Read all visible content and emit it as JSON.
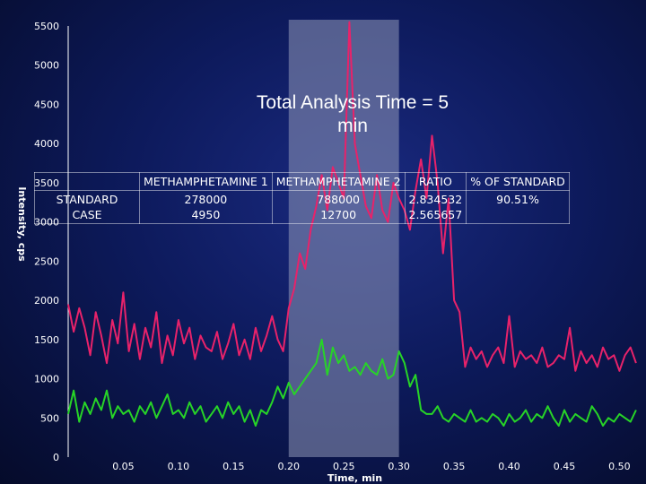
{
  "chart_data": {
    "type": "line",
    "title": "",
    "xlabel": "Time, min",
    "ylabel": "Intensity, cps",
    "xlim": [
      0,
      0.52
    ],
    "ylim": [
      0,
      5500
    ],
    "x_ticks": [
      0.05,
      0.1,
      0.15,
      0.2,
      0.25,
      0.3,
      0.35,
      0.4,
      0.45,
      0.5
    ],
    "x_tick_labels": [
      "0.05",
      "0.10",
      "0.15",
      "0.20",
      "0.25",
      "0.30",
      "0.35",
      "0.40",
      "0.45",
      "0.50"
    ],
    "y_ticks": [
      0,
      500,
      1000,
      1500,
      2000,
      2500,
      3000,
      3500,
      4000,
      4500,
      5000,
      5500
    ],
    "y_tick_labels": [
      "0",
      "500",
      "1000",
      "1500",
      "2000",
      "2500",
      "3000",
      "3500",
      "4000",
      "4500",
      "5000",
      "5500"
    ],
    "highlight_x_range": [
      0.2,
      0.3
    ],
    "grid": false,
    "series": [
      {
        "color": "#e8226a",
        "x": [
          0.0,
          0.005,
          0.01,
          0.015,
          0.02,
          0.025,
          0.03,
          0.035,
          0.04,
          0.045,
          0.05,
          0.055,
          0.06,
          0.065,
          0.07,
          0.075,
          0.08,
          0.085,
          0.09,
          0.095,
          0.1,
          0.105,
          0.11,
          0.115,
          0.12,
          0.125,
          0.13,
          0.135,
          0.14,
          0.145,
          0.15,
          0.155,
          0.16,
          0.165,
          0.17,
          0.175,
          0.18,
          0.185,
          0.19,
          0.195,
          0.2,
          0.205,
          0.21,
          0.215,
          0.22,
          0.225,
          0.23,
          0.235,
          0.24,
          0.245,
          0.25,
          0.255,
          0.26,
          0.265,
          0.27,
          0.275,
          0.28,
          0.285,
          0.29,
          0.295,
          0.3,
          0.305,
          0.31,
          0.315,
          0.32,
          0.325,
          0.33,
          0.335,
          0.34,
          0.345,
          0.35,
          0.355,
          0.36,
          0.365,
          0.37,
          0.375,
          0.38,
          0.385,
          0.39,
          0.395,
          0.4,
          0.405,
          0.41,
          0.415,
          0.42,
          0.425,
          0.43,
          0.435,
          0.44,
          0.445,
          0.45,
          0.455,
          0.46,
          0.465,
          0.47,
          0.475,
          0.48,
          0.485,
          0.49,
          0.495,
          0.5,
          0.505,
          0.51,
          0.515
        ],
        "y": [
          1950,
          1600,
          1900,
          1650,
          1300,
          1850,
          1550,
          1200,
          1750,
          1450,
          2100,
          1350,
          1700,
          1250,
          1650,
          1400,
          1850,
          1200,
          1550,
          1300,
          1750,
          1450,
          1650,
          1250,
          1550,
          1400,
          1350,
          1600,
          1250,
          1450,
          1700,
          1300,
          1500,
          1250,
          1650,
          1350,
          1550,
          1800,
          1500,
          1350,
          1900,
          2150,
          2600,
          2400,
          2900,
          3200,
          3600,
          3150,
          3700,
          3500,
          3300,
          5550,
          4000,
          3600,
          3200,
          3050,
          3600,
          3150,
          3000,
          3500,
          3300,
          3150,
          2900,
          3400,
          3800,
          3300,
          4100,
          3500,
          2600,
          3300,
          2000,
          1850,
          1150,
          1400,
          1250,
          1350,
          1150,
          1300,
          1400,
          1200,
          1800,
          1150,
          1350,
          1250,
          1300,
          1200,
          1400,
          1150,
          1200,
          1300,
          1250,
          1650,
          1100,
          1350,
          1200,
          1300,
          1150,
          1400,
          1250,
          1300,
          1100,
          1300,
          1400,
          1200
        ]
      },
      {
        "color": "#27d427",
        "x": [
          0.0,
          0.005,
          0.01,
          0.015,
          0.02,
          0.025,
          0.03,
          0.035,
          0.04,
          0.045,
          0.05,
          0.055,
          0.06,
          0.065,
          0.07,
          0.075,
          0.08,
          0.085,
          0.09,
          0.095,
          0.1,
          0.105,
          0.11,
          0.115,
          0.12,
          0.125,
          0.13,
          0.135,
          0.14,
          0.145,
          0.15,
          0.155,
          0.16,
          0.165,
          0.17,
          0.175,
          0.18,
          0.185,
          0.19,
          0.195,
          0.2,
          0.205,
          0.21,
          0.215,
          0.22,
          0.225,
          0.23,
          0.235,
          0.24,
          0.245,
          0.25,
          0.255,
          0.26,
          0.265,
          0.27,
          0.275,
          0.28,
          0.285,
          0.29,
          0.295,
          0.3,
          0.305,
          0.31,
          0.315,
          0.32,
          0.325,
          0.33,
          0.335,
          0.34,
          0.345,
          0.35,
          0.355,
          0.36,
          0.365,
          0.37,
          0.375,
          0.38,
          0.385,
          0.39,
          0.395,
          0.4,
          0.405,
          0.41,
          0.415,
          0.42,
          0.425,
          0.43,
          0.435,
          0.44,
          0.445,
          0.45,
          0.455,
          0.46,
          0.465,
          0.47,
          0.475,
          0.48,
          0.485,
          0.49,
          0.495,
          0.5,
          0.505,
          0.51,
          0.515
        ],
        "y": [
          550,
          850,
          450,
          700,
          550,
          750,
          600,
          850,
          500,
          650,
          550,
          600,
          450,
          650,
          550,
          700,
          500,
          650,
          800,
          550,
          600,
          500,
          700,
          550,
          650,
          450,
          550,
          650,
          500,
          700,
          550,
          650,
          450,
          600,
          400,
          600,
          550,
          700,
          900,
          750,
          950,
          800,
          900,
          1000,
          1100,
          1200,
          1500,
          1050,
          1400,
          1200,
          1300,
          1100,
          1150,
          1050,
          1200,
          1100,
          1050,
          1250,
          1000,
          1050,
          1350,
          1200,
          900,
          1050,
          600,
          550,
          550,
          650,
          500,
          450,
          550,
          500,
          450,
          600,
          450,
          500,
          450,
          550,
          500,
          400,
          550,
          450,
          500,
          600,
          450,
          550,
          500,
          650,
          500,
          400,
          600,
          450,
          550,
          500,
          450,
          650,
          550,
          400,
          500,
          450,
          550,
          500,
          450,
          600
        ]
      }
    ]
  },
  "annotation": {
    "text_line1": "Total Analysis Time = 5",
    "text_line2": "min"
  },
  "table": {
    "headers": [
      "",
      "METHAMPHETAMINE 1",
      "METHAMPHETAMINE 2",
      "RATIO",
      "% OF STANDARD"
    ],
    "rows": [
      {
        "label_line1": "STANDARD",
        "label_line2": "CASE",
        "meth1_line1": "278000",
        "meth1_line2": "4950",
        "meth2_line1": "788000",
        "meth2_line2": "12700",
        "ratio_line1": "2.834532",
        "ratio_line2": "2.565657",
        "percent_line1": "",
        "percent_line2": "90.51%"
      }
    ]
  }
}
